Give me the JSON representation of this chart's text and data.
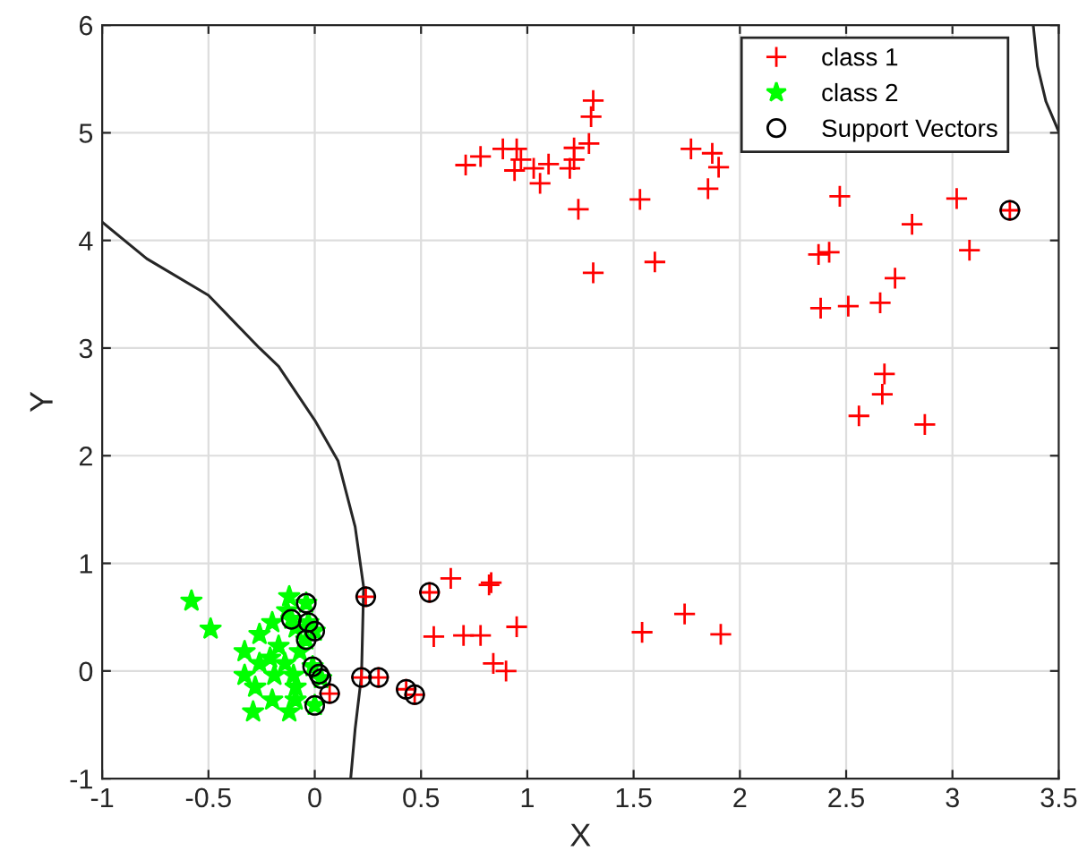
{
  "chart_data": {
    "type": "scatter",
    "xlabel": "X",
    "ylabel": "Y",
    "xlim": [
      -1,
      3.5
    ],
    "ylim": [
      -1,
      6
    ],
    "xticks": [
      -1,
      -0.5,
      0,
      0.5,
      1,
      1.5,
      2,
      2.5,
      3,
      3.5
    ],
    "yticks": [
      -1,
      0,
      1,
      2,
      3,
      4,
      5,
      6
    ],
    "grid": true,
    "legend": "top right",
    "series": [
      {
        "name": "class 1",
        "color": "#ff0000",
        "marker": "cross",
        "x": [
          0.71,
          0.78,
          0.885,
          0.95,
          0.97,
          0.94,
          1.03,
          1.06,
          1.1,
          1.2,
          1.22,
          1.22,
          1.29,
          1.3,
          1.31,
          1.24,
          1.53,
          1.31,
          1.6,
          1.77,
          1.87,
          1.9,
          1.85,
          2.47,
          3.02,
          3.27,
          2.81,
          3.08,
          2.37,
          2.42,
          2.73,
          2.38,
          2.51,
          2.66,
          2.68,
          2.67,
          2.56,
          2.87,
          0.24,
          0.54,
          0.64,
          0.82,
          0.83,
          0.56,
          0.7,
          0.78,
          0.95,
          0.84,
          0.9,
          1.54,
          1.74,
          1.91,
          0.22,
          0.3,
          0.43,
          0.47,
          0.07
        ],
        "values": [
          4.7,
          4.78,
          4.85,
          4.85,
          4.75,
          4.65,
          4.67,
          4.53,
          4.71,
          4.67,
          4.86,
          4.75,
          4.9,
          5.15,
          5.3,
          4.29,
          4.38,
          3.7,
          3.8,
          4.85,
          4.81,
          4.68,
          4.48,
          4.41,
          4.39,
          4.28,
          4.15,
          3.91,
          3.87,
          3.89,
          3.65,
          3.37,
          3.39,
          3.42,
          2.76,
          2.57,
          2.37,
          2.29,
          0.69,
          0.73,
          0.86,
          0.8,
          0.82,
          0.32,
          0.33,
          0.33,
          0.41,
          0.07,
          0.0,
          0.36,
          0.53,
          0.34,
          -0.06,
          -0.06,
          -0.17,
          -0.22,
          -0.21
        ]
      },
      {
        "name": "class 2",
        "color": "#00ff00",
        "marker": "star",
        "x": [
          -0.58,
          -0.49,
          -0.12,
          -0.33,
          -0.33,
          -0.29,
          -0.26,
          -0.2,
          -0.21,
          -0.19,
          -0.2,
          -0.12,
          -0.17,
          -0.14,
          -0.1,
          -0.09,
          -0.13,
          -0.09,
          -0.07,
          -0.09,
          -0.26,
          -0.28,
          -0.04,
          -0.11,
          -0.03,
          0.0,
          -0.04,
          -0.01,
          0.02,
          0.03,
          0.0
        ],
        "values": [
          0.65,
          0.39,
          0.69,
          0.18,
          -0.04,
          -0.38,
          0.34,
          0.45,
          0.12,
          -0.04,
          -0.27,
          -0.38,
          0.23,
          0.07,
          -0.04,
          -0.15,
          0.56,
          0.4,
          0.18,
          -0.27,
          0.07,
          -0.15,
          0.63,
          0.48,
          0.45,
          0.37,
          0.29,
          0.04,
          null,
          -0.07,
          -0.32
        ]
      },
      {
        "name": "Support Vectors",
        "color": "#000000",
        "marker": "circle",
        "x": [
          0.24,
          0.54,
          3.27,
          0.22,
          0.3,
          0.43,
          0.47,
          0.07,
          -0.04,
          -0.11,
          -0.03,
          0.0,
          -0.04,
          -0.01,
          0.02,
          0.03,
          0.0
        ],
        "values": [
          0.69,
          0.73,
          4.28,
          -0.06,
          -0.06,
          -0.17,
          -0.22,
          -0.21,
          0.63,
          0.48,
          0.45,
          0.37,
          0.29,
          0.04,
          -0.03,
          -0.07,
          -0.32
        ]
      },
      {
        "type": "line",
        "color": "#262626",
        "marker": "none",
        "x": [
          -1,
          -0.79,
          -0.5,
          -0.26,
          -0.17,
          0,
          0.11,
          0.19,
          0.23,
          0.22,
          0.19,
          0.17
        ],
        "values": [
          4.17,
          3.83,
          3.49,
          3.0,
          2.83,
          2.33,
          1.95,
          1.34,
          0.78,
          -0.04,
          -0.54,
          -0.98
        ]
      },
      {
        "type": "line",
        "color": "#262626",
        "marker": "none",
        "x": [
          3.38,
          3.4,
          3.44,
          3.5
        ],
        "values": [
          6.0,
          5.62,
          5.29,
          5.01
        ]
      }
    ]
  }
}
